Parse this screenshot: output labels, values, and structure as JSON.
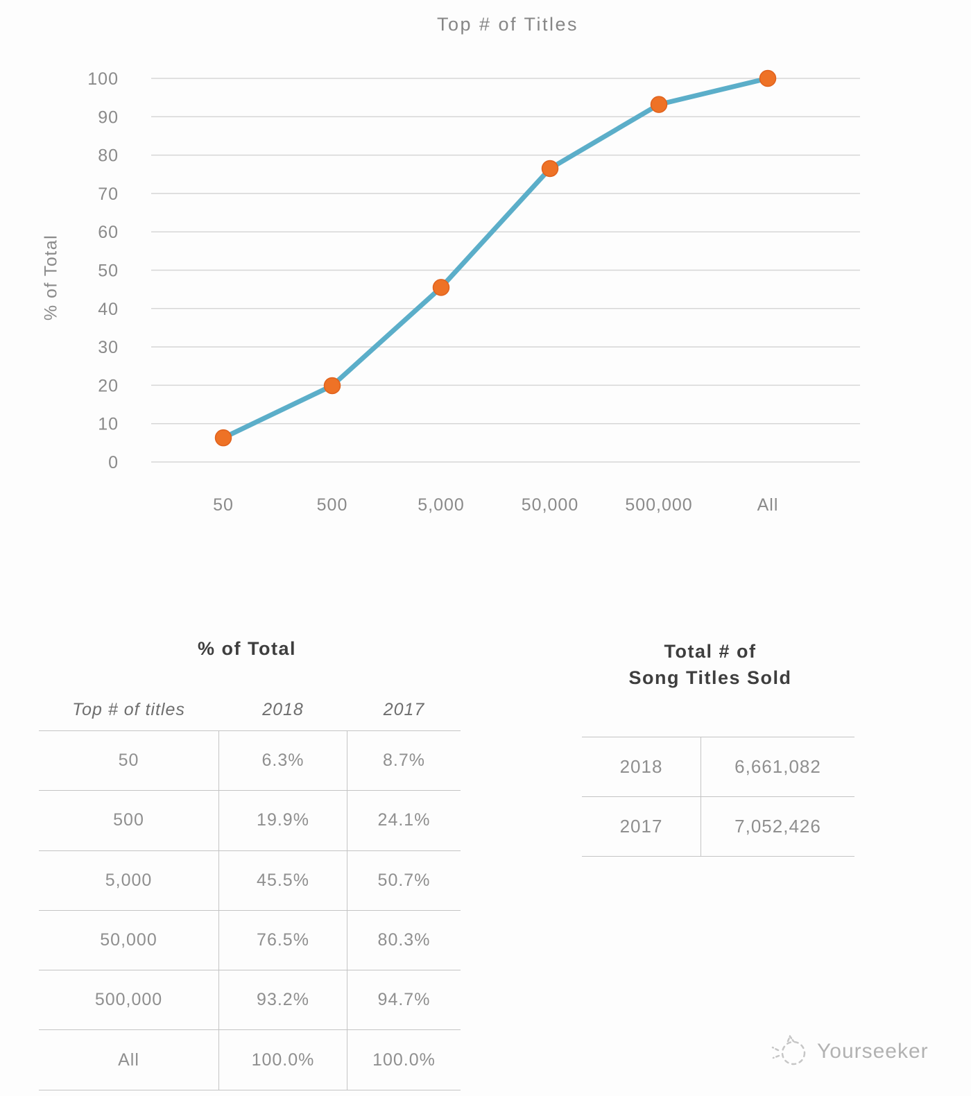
{
  "chart_data": {
    "type": "line",
    "title": "Top # of Titles",
    "xlabel": "",
    "ylabel": "% of Total",
    "categories": [
      "50",
      "500",
      "5,000",
      "50,000",
      "500,000",
      "All"
    ],
    "series": [
      {
        "name": "2018",
        "values": [
          6.3,
          19.9,
          45.5,
          76.5,
          93.2,
          100.0
        ]
      }
    ],
    "ylim": [
      0,
      100
    ],
    "yticks": [
      0,
      10,
      20,
      30,
      40,
      50,
      60,
      70,
      80,
      90,
      100
    ],
    "grid": true,
    "legend_position": "none",
    "line_color": "#5baec9",
    "marker_color": "#ee7226"
  },
  "pct_table": {
    "title": "% of Total",
    "columns": [
      "Top # of titles",
      "2018",
      "2017"
    ],
    "rows": [
      [
        "50",
        "6.3%",
        "8.7%"
      ],
      [
        "500",
        "19.9%",
        "24.1%"
      ],
      [
        "5,000",
        "45.5%",
        "50.7%"
      ],
      [
        "50,000",
        "76.5%",
        "80.3%"
      ],
      [
        "500,000",
        "93.2%",
        "94.7%"
      ],
      [
        "All",
        "100.0%",
        "100.0%"
      ]
    ]
  },
  "totals_table": {
    "title_line1": "Total # of",
    "title_line2": "Song Titles Sold",
    "rows": [
      [
        "2018",
        "6,661,082"
      ],
      [
        "2017",
        "7,052,426"
      ]
    ]
  },
  "watermark": {
    "text": "Yourseeker"
  }
}
